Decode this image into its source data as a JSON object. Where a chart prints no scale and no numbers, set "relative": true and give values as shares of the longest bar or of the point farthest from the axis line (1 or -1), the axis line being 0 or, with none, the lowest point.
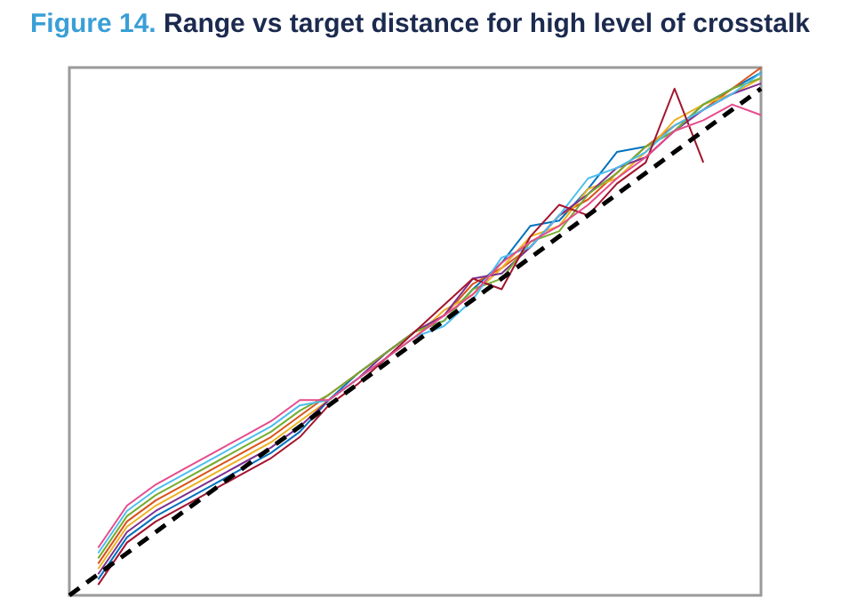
{
  "chart_data": {
    "type": "line",
    "title": "Figure 14. Range vs target distance for high level of crosstalk",
    "relative": true,
    "categories": [
      null,
      null,
      null,
      null,
      null,
      null,
      null,
      null,
      null,
      null,
      null,
      null,
      null,
      null,
      null,
      null,
      null,
      null,
      null,
      null,
      null,
      null,
      null,
      null,
      null
    ],
    "series": [
      {
        "color": "#0072bd",
        "values": [
          null,
          0.03,
          0.11,
          0.15,
          0.18,
          0.21,
          0.24,
          0.27,
          0.31,
          0.37,
          0.42,
          0.46,
          0.5,
          0.52,
          0.58,
          0.63,
          0.7,
          0.71,
          0.77,
          0.84,
          0.85,
          0.88,
          0.93,
          0.96,
          0.99
        ]
      },
      {
        "color": "#d95319",
        "values": [
          null,
          0.06,
          0.14,
          0.18,
          0.21,
          0.24,
          0.27,
          0.3,
          0.34,
          0.38,
          0.42,
          0.46,
          0.5,
          0.53,
          0.59,
          0.62,
          0.66,
          0.72,
          0.75,
          0.8,
          0.85,
          0.89,
          0.92,
          0.96,
          1.0
        ]
      },
      {
        "color": "#edb120",
        "values": [
          null,
          0.05,
          0.13,
          0.17,
          0.2,
          0.23,
          0.26,
          0.29,
          0.33,
          0.37,
          0.41,
          0.45,
          0.49,
          0.54,
          0.57,
          0.62,
          0.68,
          0.7,
          0.77,
          0.79,
          0.84,
          0.9,
          0.93,
          0.95,
          0.98
        ]
      },
      {
        "color": "#7e2f8e",
        "values": [
          null,
          0.04,
          0.12,
          0.16,
          0.19,
          0.22,
          0.25,
          0.28,
          0.32,
          0.37,
          0.41,
          0.46,
          0.5,
          0.53,
          0.6,
          0.61,
          0.66,
          0.72,
          0.76,
          0.81,
          0.83,
          0.88,
          0.92,
          0.95,
          0.97
        ]
      },
      {
        "color": "#77ac30",
        "values": [
          null,
          0.07,
          0.15,
          0.19,
          0.22,
          0.25,
          0.28,
          0.31,
          0.35,
          0.38,
          0.42,
          0.46,
          0.5,
          0.52,
          0.58,
          0.6,
          0.67,
          0.69,
          0.76,
          0.8,
          0.85,
          0.88,
          0.93,
          0.96,
          0.98
        ]
      },
      {
        "color": "#4dbeee",
        "values": [
          null,
          0.08,
          0.16,
          0.2,
          0.23,
          0.26,
          0.29,
          0.32,
          0.36,
          0.37,
          0.41,
          0.45,
          0.49,
          0.51,
          0.56,
          0.64,
          0.66,
          0.72,
          0.79,
          0.81,
          0.84,
          0.89,
          0.92,
          0.95,
          0.99
        ]
      },
      {
        "color": "#a2142f",
        "values": [
          null,
          0.02,
          0.1,
          0.14,
          0.17,
          0.2,
          0.23,
          0.26,
          0.3,
          0.36,
          0.4,
          0.45,
          0.5,
          0.55,
          0.6,
          0.58,
          0.68,
          0.74,
          0.72,
          0.78,
          0.82,
          0.96,
          0.82,
          null,
          null
        ]
      },
      {
        "color": "#e64b8c",
        "values": [
          null,
          0.09,
          0.17,
          0.21,
          0.24,
          0.27,
          0.3,
          0.33,
          0.37,
          0.37,
          0.41,
          0.45,
          0.49,
          0.53,
          0.57,
          0.63,
          0.67,
          0.7,
          0.74,
          0.79,
          0.83,
          0.88,
          0.9,
          0.93,
          0.91
        ]
      },
      {
        "color": "#000000",
        "line_style": "dashed",
        "values": [
          0,
          0.04,
          0.08,
          0.12,
          0.16,
          0.2,
          0.24,
          0.28,
          0.32,
          0.36,
          0.4,
          0.44,
          0.48,
          0.52,
          0.56,
          0.6,
          0.64,
          0.68,
          0.72,
          0.76,
          0.8,
          0.84,
          0.88,
          0.92,
          0.96
        ]
      }
    ]
  }
}
